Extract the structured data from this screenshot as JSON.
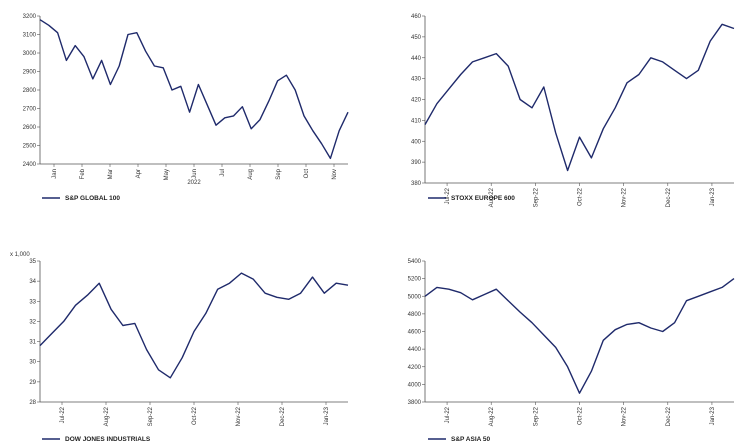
{
  "colors": {
    "line": "#1f2a6b",
    "axis": "#555555",
    "background": "#ffffff"
  },
  "chart_data": [
    {
      "type": "line",
      "series": [
        {
          "name": "S&P GLOBAL 100",
          "x": [
            0,
            0.3,
            0.6,
            0.9,
            1.2,
            1.5,
            1.8,
            2.1,
            2.4,
            2.7,
            3.0,
            3.3,
            3.6,
            3.9,
            4.2,
            4.5,
            4.8,
            5.1,
            5.4,
            5.7,
            6.0,
            6.3,
            6.6,
            6.9,
            7.2,
            7.5,
            7.8,
            8.1,
            8.4,
            8.7,
            9.0,
            9.3,
            9.6,
            9.9,
            10.2,
            10.5
          ],
          "values": [
            3180,
            3150,
            3110,
            2960,
            3040,
            2980,
            2860,
            2960,
            2830,
            2930,
            3100,
            3110,
            3010,
            2930,
            2920,
            2800,
            2820,
            2680,
            2830,
            2720,
            2610,
            2650,
            2660,
            2710,
            2590,
            2640,
            2740,
            2850,
            2880,
            2800,
            2660,
            2580,
            2510,
            2430,
            2580,
            2680
          ]
        }
      ],
      "x_ticks": [
        "Jan",
        "Feb",
        "Mar",
        "Apr",
        "May",
        "Jun",
        "Jul",
        "Aug",
        "Sep",
        "Oct",
        "Nov"
      ],
      "x_sub": "2022",
      "y_ticks": [
        "2400",
        "2500",
        "2600",
        "2700",
        "2800",
        "2900",
        "3000",
        "3100",
        "3200"
      ],
      "ylim": [
        2400,
        3200
      ],
      "y_multiplier": "",
      "grid": false
    },
    {
      "type": "line",
      "series": [
        {
          "name": "STOXX EUROPE 600",
          "x": [
            0,
            0.3,
            0.6,
            0.9,
            1.2,
            1.5,
            1.8,
            2.1,
            2.4,
            2.7,
            3.0,
            3.3,
            3.6,
            3.9,
            4.2,
            4.5,
            4.8,
            5.1,
            5.4,
            5.7,
            6.0,
            6.3,
            6.6,
            6.9,
            7.2,
            7.5,
            7.8
          ],
          "values": [
            408,
            418,
            425,
            432,
            438,
            440,
            442,
            436,
            420,
            416,
            426,
            404,
            386,
            402,
            392,
            406,
            416,
            428,
            432,
            440,
            438,
            434,
            430,
            434,
            448,
            456,
            454
          ]
        }
      ],
      "x_ticks": [
        "Jul-22",
        "Aug-22",
        "Sep-22",
        "Oct-22",
        "Nov-22",
        "Dec-22",
        "Jan-23"
      ],
      "x_sub": "",
      "y_ticks": [
        "380",
        "390",
        "400",
        "410",
        "420",
        "430",
        "440",
        "450",
        "460"
      ],
      "ylim": [
        380,
        460
      ],
      "y_multiplier": "",
      "grid": false
    },
    {
      "type": "line",
      "series": [
        {
          "name": "DOW JONES INDUSTRIALS",
          "x": [
            0,
            0.3,
            0.6,
            0.9,
            1.2,
            1.5,
            1.8,
            2.1,
            2.4,
            2.7,
            3.0,
            3.3,
            3.6,
            3.9,
            4.2,
            4.5,
            4.8,
            5.1,
            5.4,
            5.7,
            6.0,
            6.3,
            6.6,
            6.9,
            7.2,
            7.5,
            7.8
          ],
          "values": [
            30.8,
            31.4,
            32.0,
            32.8,
            33.3,
            33.9,
            32.6,
            31.8,
            31.9,
            30.6,
            29.6,
            29.2,
            30.2,
            31.5,
            32.4,
            33.6,
            33.9,
            34.4,
            34.1,
            33.4,
            33.2,
            33.1,
            33.4,
            34.2,
            33.4,
            33.9,
            33.8
          ]
        }
      ],
      "x_ticks": [
        "Jul-22",
        "Aug-22",
        "Sep-22",
        "Oct-22",
        "Nov-22",
        "Dec-22",
        "Jan-23"
      ],
      "x_sub": "",
      "y_ticks": [
        "28",
        "29",
        "30",
        "31",
        "32",
        "33",
        "34",
        "35"
      ],
      "ylim": [
        28,
        35
      ],
      "y_multiplier": "x 1,000",
      "grid": false
    },
    {
      "type": "line",
      "series": [
        {
          "name": "S&P ASIA 50",
          "x": [
            0,
            0.3,
            0.6,
            0.9,
            1.2,
            1.5,
            1.8,
            2.1,
            2.4,
            2.7,
            3.0,
            3.3,
            3.6,
            3.9,
            4.2,
            4.5,
            4.8,
            5.1,
            5.4,
            5.7,
            6.0,
            6.3,
            6.6,
            6.9,
            7.2,
            7.5,
            7.8
          ],
          "values": [
            5000,
            5100,
            5080,
            5040,
            4960,
            5020,
            5080,
            4950,
            4820,
            4700,
            4560,
            4420,
            4200,
            3900,
            4150,
            4500,
            4620,
            4680,
            4700,
            4640,
            4600,
            4700,
            4950,
            5000,
            5050,
            5100,
            5200
          ]
        }
      ],
      "x_ticks": [
        "Jul-22",
        "Aug-22",
        "Sep-22",
        "Oct-22",
        "Nov-22",
        "Dec-22",
        "Jan-23"
      ],
      "x_sub": "",
      "y_ticks": [
        "3800",
        "4000",
        "4200",
        "4400",
        "4600",
        "4800",
        "5000",
        "5200",
        "5400"
      ],
      "ylim": [
        3800,
        5400
      ],
      "y_multiplier": "",
      "grid": false
    }
  ]
}
